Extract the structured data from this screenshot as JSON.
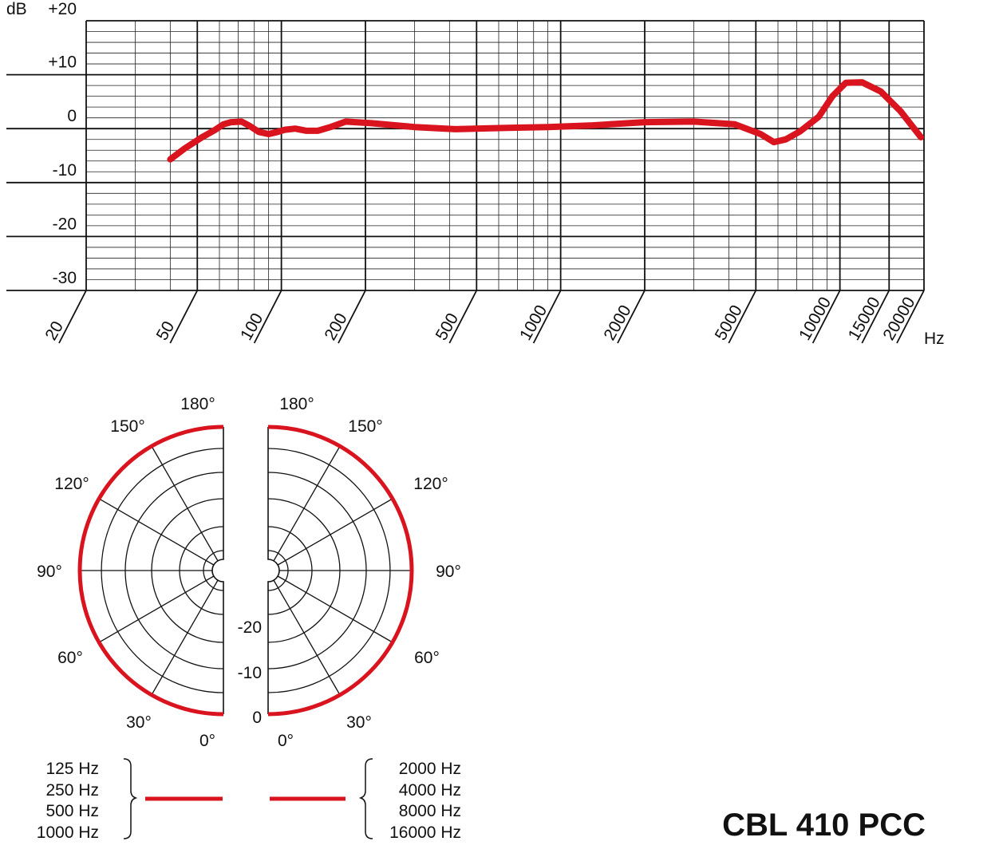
{
  "colors": {
    "curve": "#d9141e",
    "grid_major": "#111111",
    "grid_minor": "#222222",
    "text": "#111111"
  },
  "model_name": "CBL 410 PCC",
  "chart_data": [
    {
      "type": "line",
      "title": "",
      "xlabel": "Hz",
      "ylabel": "dB",
      "x_scale": "log",
      "xlim": [
        20,
        20000
      ],
      "ylim": [
        -30,
        20
      ],
      "grid": true,
      "x_tick_labels": [
        "20",
        "50",
        "100",
        "200",
        "500",
        "1000",
        "2000",
        "5000",
        "10000",
        "15000",
        "20000"
      ],
      "y_tick_labels": [
        "+20",
        "+10",
        "0",
        "-10",
        "-20",
        "-30"
      ],
      "y_tick_values": [
        20,
        10,
        0,
        -10,
        -20,
        -30
      ],
      "series": [
        {
          "x": [
            40,
            45,
            52,
            58,
            62,
            66,
            72,
            77,
            83,
            90,
            97,
            103,
            112,
            123,
            135,
            150,
            170,
            210,
            300,
            420,
            600,
            900,
            1300,
            2000,
            3000,
            4200,
            5200,
            5800,
            6400,
            7200,
            8400,
            9400,
            10500,
            12000,
            14000,
            16500,
            19500
          ],
          "y": [
            -5.7,
            -3.7,
            -1.6,
            -0.2,
            0.8,
            1.2,
            1.3,
            0.5,
            -0.6,
            -1.0,
            -0.6,
            -0.2,
            0.0,
            -0.4,
            -0.4,
            0.3,
            1.3,
            1.0,
            0.3,
            -0.1,
            0.1,
            0.3,
            0.6,
            1.2,
            1.3,
            0.8,
            -1.0,
            -2.5,
            -2.0,
            -0.5,
            2.2,
            6.0,
            8.5,
            8.6,
            6.9,
            3.2,
            -1.6
          ]
        }
      ]
    },
    {
      "type": "polar",
      "title": "",
      "angle_labels": [
        "180°",
        "150°",
        "120°",
        "90°",
        "60°",
        "30°",
        "0°"
      ],
      "radial_labels": [
        "-20",
        "-10",
        "0"
      ],
      "halves": [
        {
          "side": "left",
          "frequencies": [
            "125 Hz",
            "250 Hz",
            "500 Hz",
            "1000 Hz"
          ],
          "pattern": "omnidirectional",
          "level_db": 0
        },
        {
          "side": "right",
          "frequencies": [
            "2000 Hz",
            "4000 Hz",
            "8000 Hz",
            "16000 Hz"
          ],
          "pattern": "omnidirectional",
          "level_db": 0
        }
      ]
    }
  ]
}
